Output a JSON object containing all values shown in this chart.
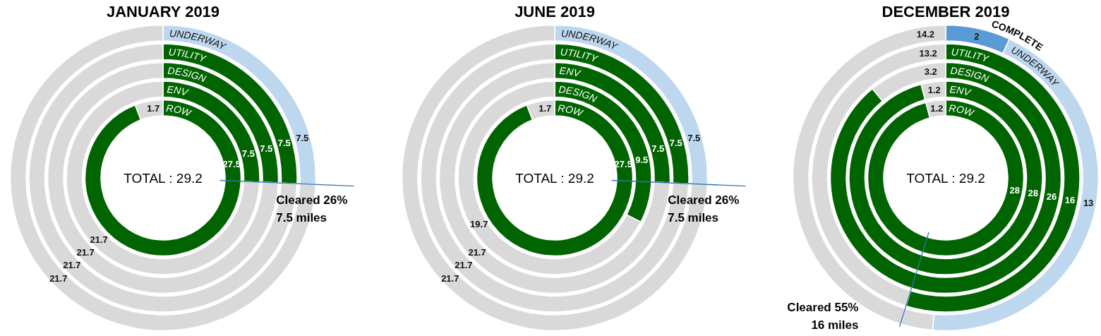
{
  "chart_data": [
    {
      "type": "donut",
      "title": "JANUARY 2019",
      "data_labels": true,
      "annotations": [
        "TOTAL : 29.2",
        "Cleared 26%\n7.5 miles"
      ],
      "series": [
        {
          "name": "UNDERWAY",
          "values": [
            7.5,
            21.7
          ],
          "colors": [
            "#bdd7ee",
            "#d9d9d9"
          ]
        }
      ]
    },
    {
      "type": "donut",
      "data_labels": true,
      "series": [
        {
          "name": "UTILITY",
          "values": [
            7.5,
            21.7
          ],
          "colors": [
            "#006400",
            "#d9d9d9"
          ]
        }
      ]
    },
    {
      "type": "donut",
      "data_labels": true,
      "series": [
        {
          "name": "DESIGN",
          "values": [
            7.5,
            21.7
          ],
          "colors": [
            "#006400",
            "#d9d9d9"
          ]
        }
      ]
    },
    {
      "type": "donut",
      "data_labels": true,
      "series": [
        {
          "name": "ENV",
          "values": [
            7.5,
            21.7
          ],
          "colors": [
            "#006400",
            "#d9d9d9"
          ]
        }
      ]
    },
    {
      "type": "donut",
      "data_labels": true,
      "series": [
        {
          "name": "ROW",
          "values": [
            27.5,
            1.7
          ],
          "colors": [
            "#006400",
            "#d9d9d9"
          ]
        }
      ]
    },
    {
      "type": "donut",
      "title": "JUNE 2019",
      "data_labels": true,
      "annotations": [
        "TOTAL : 29.2",
        "Cleared 26%\n7.5 miles"
      ],
      "series": [
        {
          "name": "UNDERWAY",
          "values": [
            7.5,
            21.7
          ],
          "colors": [
            "#bdd7ee",
            "#d9d9d9"
          ]
        }
      ]
    },
    {
      "type": "donut",
      "data_labels": true,
      "series": [
        {
          "name": "UTILITY",
          "values": [
            7.5,
            21.7
          ],
          "colors": [
            "#006400",
            "#d9d9d9"
          ]
        }
      ]
    },
    {
      "type": "donut",
      "data_labels": true,
      "series": [
        {
          "name": "ENV",
          "values": [
            7.5,
            21.7
          ],
          "colors": [
            "#006400",
            "#d9d9d9"
          ]
        }
      ]
    },
    {
      "type": "donut",
      "data_labels": true,
      "series": [
        {
          "name": "DESIGN",
          "values": [
            9.5,
            19.7
          ],
          "colors": [
            "#006400",
            "#d9d9d9"
          ]
        }
      ]
    },
    {
      "type": "donut",
      "data_labels": true,
      "series": [
        {
          "name": "ROW",
          "values": [
            27.5,
            1.7
          ],
          "colors": [
            "#006400",
            "#d9d9d9"
          ]
        }
      ]
    },
    {
      "type": "donut",
      "title": "DECEMBER 2019",
      "data_labels": true,
      "annotations": [
        "TOTAL : 29.2",
        "Cleared 55%\n16 miles",
        "COMPLETE"
      ],
      "series": [
        {
          "name": "UNDERWAY",
          "values": [
            2,
            13,
            14.2
          ],
          "colors": [
            "#5b9bd5",
            "#bdd7ee",
            "#d9d9d9"
          ]
        }
      ]
    },
    {
      "type": "donut",
      "data_labels": true,
      "series": [
        {
          "name": "UTILITY",
          "values": [
            16,
            13.2
          ],
          "colors": [
            "#006400",
            "#d9d9d9"
          ]
        }
      ]
    },
    {
      "type": "donut",
      "data_labels": true,
      "series": [
        {
          "name": "DESIGN",
          "values": [
            26,
            3.2
          ],
          "colors": [
            "#006400",
            "#d9d9d9"
          ]
        }
      ]
    },
    {
      "type": "donut",
      "data_labels": true,
      "series": [
        {
          "name": "ENV",
          "values": [
            28,
            1.2
          ],
          "colors": [
            "#006400",
            "#d9d9d9"
          ]
        }
      ]
    },
    {
      "type": "donut",
      "data_labels": true,
      "series": [
        {
          "name": "ROW",
          "values": [
            28,
            1.2
          ],
          "colors": [
            "#006400",
            "#d9d9d9"
          ]
        }
      ]
    }
  ]
}
